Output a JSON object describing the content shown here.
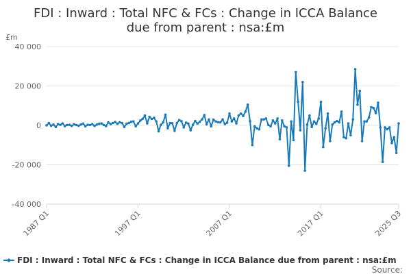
{
  "chart_data": {
    "type": "line",
    "title": "FDI : Inward : Total NFC & FCs : Change in ICCA Balance due from parent : nsa:£m",
    "title_lines": [
      "FDI : Inward : Total NFC & FCs : Change in ICCA Balance",
      "due from parent : nsa:£m"
    ],
    "ylabel": "£m",
    "xlabel": "",
    "ylim": [
      -40000,
      40000
    ],
    "yticks": [
      40000,
      20000,
      0,
      -20000,
      -40000
    ],
    "ytick_labels": [
      "40 000",
      "20 000",
      "0",
      "-20 000",
      "-40 000"
    ],
    "x_start": "1987 Q1",
    "x_end": "2025 Q3",
    "xtick_labels": [
      "1987 Q1",
      "1997 Q1",
      "2007 Q1",
      "2017 Q1",
      "2025 Q3"
    ],
    "xtick_index": [
      0,
      40,
      80,
      120,
      154
    ],
    "grid": true,
    "legend_position": "bottom",
    "series": [
      {
        "name": "FDI : Inward : Total NFC & FCs : Change in ICCA Balance due from parent : nsa:£m",
        "color": "#1a7ab8",
        "values": [
          0,
          1200,
          -200,
          400,
          -800,
          600,
          300,
          1000,
          -400,
          200,
          300,
          -300,
          500,
          200,
          -200,
          400,
          900,
          -500,
          300,
          200,
          600,
          -300,
          400,
          800,
          1000,
          200,
          -400,
          1500,
          600,
          1200,
          1700,
          800,
          1600,
          1200,
          -800,
          800,
          1200,
          1800,
          2000,
          -500,
          1000,
          2400,
          3300,
          5000,
          1000,
          4300,
          3300,
          3800,
          2000,
          -3000,
          300,
          1500,
          5400,
          -1500,
          1200,
          1100,
          -2800,
          1200,
          2700,
          2100,
          -1000,
          1400,
          900,
          -2500,
          300,
          2200,
          900,
          1800,
          3000,
          5200,
          500,
          3000,
          -500,
          2900,
          2000,
          1600,
          1500,
          3000,
          600,
          1400,
          6000,
          2000,
          3500,
          1000,
          5000,
          6000,
          4800,
          7000,
          10500,
          2100,
          -10000,
          -500,
          -1500,
          -2000,
          3000,
          3000,
          3500,
          200,
          -500,
          2500,
          1000,
          3500,
          -7000,
          2500,
          -500,
          -1000,
          -20500,
          2000,
          -7500,
          27000,
          12000,
          -2500,
          22000,
          -23000,
          400,
          5000,
          -800,
          2000,
          800,
          3500,
          12000,
          -11000,
          -1500,
          6000,
          -8000,
          400,
          1500,
          2200,
          1500,
          7000,
          -6000,
          -6500,
          1000,
          -5000,
          3000,
          28500,
          10500,
          17500,
          -8000,
          2000,
          2000,
          4000,
          9200,
          8800,
          6200,
          11500,
          -1000,
          -18500,
          -1000,
          -2000,
          -1000,
          -9000,
          -6000,
          -14000,
          1000
        ]
      }
    ],
    "source_label": "Source:"
  },
  "colors": {
    "line": "#1a7ab8",
    "grid": "#e6e6e6",
    "axis": "#ccd6eb"
  }
}
